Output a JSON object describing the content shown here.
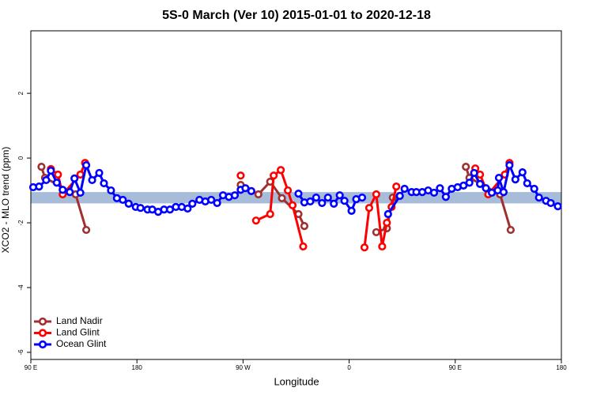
{
  "chart_data": {
    "type": "line",
    "title": "5S-0 March (Ver 10)   2015-01-01 to 2020-12-18",
    "x_label": "Longitude",
    "y_label": "XCO2 - MLO trend (ppm)",
    "xlim": [
      90,
      540
    ],
    "xticks": [
      {
        "value": 90,
        "label": "90 E"
      },
      180,
      {
        "value": 270,
        "label": "90 W"
      },
      {
        "value": 360,
        "label": "0"
      },
      {
        "value": 450,
        "label": "90 E"
      },
      {
        "value": 540,
        "label": "180"
      }
    ],
    "ylim": [
      -6.22,
      3.93
    ],
    "yticks": [
      -6,
      -4,
      -2,
      0,
      2
    ],
    "reference_band": {
      "range": [
        -1.4,
        -1.05
      ],
      "color": "#a7bcd9"
    },
    "legend": "bottom-left",
    "series": [
      {
        "name": "Land Nadir",
        "color": "#a03030",
        "x": [
          99,
          102,
          128,
          137,
          null,
          268,
          283,
          293,
          303,
          317,
          322,
          null,
          383,
          392,
          397,
          null,
          459,
          462,
          488,
          497
        ],
        "values": [
          -0.27,
          -0.61,
          -1.12,
          -2.22,
          null,
          -0.83,
          -1.12,
          -0.73,
          -1.24,
          -1.73,
          -2.1,
          null,
          -2.29,
          -2.17,
          -1.22,
          null,
          -0.27,
          -0.61,
          -1.12,
          -2.22
        ]
      },
      {
        "name": "Land Glint",
        "color": "#ff0000",
        "x": [
          107,
          113,
          117,
          132,
          136,
          null,
          268,
          null,
          281,
          293,
          296,
          302,
          308,
          312,
          321,
          null,
          373,
          377,
          383,
          388,
          392,
          396,
          400,
          null,
          467,
          471,
          478,
          492,
          496
        ],
        "values": [
          -0.34,
          -0.51,
          -1.12,
          -0.51,
          -0.15,
          null,
          -0.54,
          null,
          -1.93,
          -1.73,
          -0.54,
          -0.37,
          -1.0,
          -1.46,
          -2.73,
          null,
          -2.76,
          -1.54,
          -1.12,
          -2.73,
          -2.0,
          -1.51,
          -0.88,
          null,
          -0.32,
          -0.51,
          -1.12,
          -0.51,
          -0.15
        ]
      },
      {
        "name": "Ocean Glint",
        "color": "#0000ff",
        "x": [
          92,
          97,
          103,
          107,
          112,
          117,
          123,
          127,
          132,
          137,
          142,
          148,
          152,
          158,
          163,
          168,
          173,
          179,
          183,
          189,
          193,
          198,
          203,
          208,
          213,
          218,
          223,
          227,
          233,
          238,
          243,
          248,
          253,
          258,
          263,
          268,
          272,
          277,
          null,
          317,
          322,
          327,
          332,
          337,
          342,
          347,
          352,
          356,
          362,
          366,
          371,
          null,
          393,
          403,
          407,
          413,
          417,
          422,
          427,
          432,
          437,
          442,
          447,
          452,
          457,
          462,
          466,
          471,
          476,
          481,
          486,
          487,
          491,
          496,
          501,
          507,
          511,
          517,
          521,
          527,
          531,
          537
        ],
        "values": [
          -0.9,
          -0.88,
          -0.68,
          -0.39,
          -0.76,
          -0.98,
          -1.05,
          -0.63,
          -1.07,
          -0.22,
          -0.68,
          -0.46,
          -0.78,
          -1.0,
          -1.24,
          -1.29,
          -1.41,
          -1.51,
          -1.54,
          -1.59,
          -1.59,
          -1.66,
          -1.59,
          -1.59,
          -1.51,
          -1.51,
          -1.56,
          -1.41,
          -1.29,
          -1.34,
          -1.29,
          -1.39,
          -1.15,
          -1.2,
          -1.15,
          -0.98,
          -0.93,
          -1.02,
          null,
          -1.1,
          -1.37,
          -1.34,
          -1.22,
          -1.39,
          -1.22,
          -1.41,
          -1.15,
          -1.32,
          -1.63,
          -1.27,
          -1.22,
          null,
          -1.73,
          -1.17,
          -0.95,
          -1.05,
          -1.05,
          -1.05,
          -1.0,
          -1.07,
          -0.93,
          -1.2,
          -0.95,
          -0.9,
          -0.85,
          -0.76,
          -0.46,
          -0.8,
          -0.93,
          -1.07,
          -1.0,
          -0.61,
          -1.05,
          -0.22,
          -0.66,
          -0.44,
          -0.78,
          -0.95,
          -1.22,
          -1.32,
          -1.39,
          -1.49
        ]
      }
    ]
  }
}
